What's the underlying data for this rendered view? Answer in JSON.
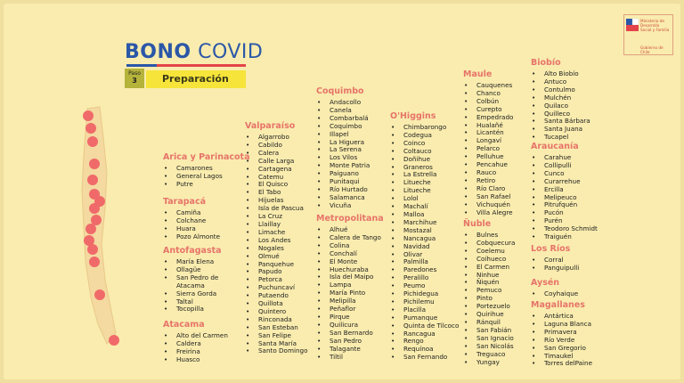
{
  "header": {
    "title_bold": "BONO",
    "title_rest": "COVID",
    "step_label": "Paso",
    "step_number": "3",
    "section": "Preparación"
  },
  "logo": {
    "line1": "Ministerio de Desarrollo Social y Familia",
    "line2": "Gobierno de Chile"
  },
  "regions": [
    {
      "name": "Arica y Parinacota",
      "communes": [
        "Camarones",
        "General Lagos",
        "Putre"
      ]
    },
    {
      "name": "Tarapacá",
      "communes": [
        "Camiña",
        "Colchane",
        "Huara",
        "Pozo Almonte"
      ]
    },
    {
      "name": "Antofagasta",
      "communes": [
        "María Elena",
        "Ollagüe",
        "San Pedro de Atacama",
        "Sierra Gorda",
        "Taltal",
        "Tocopilla"
      ]
    },
    {
      "name": "Atacama",
      "communes": [
        "Alto del Carmen",
        "Caldera",
        "Freirina",
        "Huasco"
      ]
    },
    {
      "name": "Valparaíso",
      "communes": [
        "Algarrobo",
        "Cabildo",
        "Calera",
        "Calle Larga",
        "Cartagena",
        "Catemu",
        "El Quisco",
        "El Tabo",
        "Hijuelas",
        "Isla de Pascua",
        "La Cruz",
        "Llaillay",
        "Limache",
        "Los Andes",
        "Nogales",
        "Olmué",
        "Panquehue",
        "Papudo",
        "Petorca",
        "Puchuncaví",
        "Putaendo",
        "Quillota",
        "Quintero",
        "Rinconada",
        "San Esteban",
        "San Felipe",
        "Santa María",
        "Santo Domingo"
      ]
    },
    {
      "name": "Coquimbo",
      "communes": [
        "Andacollo",
        "Canela",
        "Combarbalá",
        "Coquimbo",
        "Illapel",
        "La Higuera",
        "La Serena",
        "Los Vilos",
        "Monte Patria",
        "Paiguano",
        "Punitaqui",
        "Río Hurtado",
        "Salamanca",
        "Vicuña"
      ]
    },
    {
      "name": "Metropolitana",
      "communes": [
        "Alhué",
        "Calera de Tango",
        "Colina",
        "Conchalí",
        "El Monte",
        "Huechuraba",
        "Isla del Maipo",
        "Lampa",
        "María Pinto",
        "Melipilla",
        "Peñaflor",
        "Pirque",
        "Quilicura",
        "San Bernardo",
        "San Pedro",
        "Talagante",
        "Tiltil"
      ]
    },
    {
      "name": "O'Higgins",
      "communes": [
        "Chimbarongo",
        "Codegua",
        "Coinco",
        "Coltauco",
        "Doñihue",
        "Graneros",
        "La Estrella",
        "Litueche",
        "Litueche",
        "Lolol",
        "Machalí",
        "Malloa",
        "Marchihue",
        "Mostazal",
        "Nancagua",
        "Navidad",
        "Olivar",
        "Palmilla",
        "Paredones",
        "Peralillo",
        "Peumo",
        "Pichidegua",
        "Pichilemu",
        "Placilla",
        "Pumanque",
        "Quinta de Tilcoco",
        "Rancagua",
        "Rengo",
        "Requínoa",
        "San Fernando"
      ]
    },
    {
      "name": "Maule",
      "communes": [
        "Cauquenes",
        "Chanco",
        "Colbún",
        "Curepto",
        "Empedrado",
        "Hualañé",
        "Licantén",
        "Longaví",
        "Pelarco",
        "Pelluhue",
        "Pencahue",
        "Rauco",
        "Retiro",
        "Río Claro",
        "San Rafael",
        "Vichuquén",
        "Villa Alegre"
      ]
    },
    {
      "name": "Ñuble",
      "communes": [
        "Bulnes",
        "Cobquecura",
        "Coelemu",
        "Coihueco",
        "El Carmen",
        "Ninhue",
        "Ñiquén",
        "Pemuco",
        "Pinto",
        "Portezuelo",
        "Quirihue",
        "Ránquil",
        "San Fabián",
        "San Ignacio",
        "San Nicolás",
        "Treguaco",
        "Yungay"
      ]
    },
    {
      "name": "Biobío",
      "communes": [
        "Alto Biobío",
        "Antuco",
        "Contulmo",
        "Mulchén",
        "Quilaco",
        "Quilleco",
        "Santa Bárbara",
        "Santa Juana",
        "Tucapel"
      ]
    },
    {
      "name": "Araucanía",
      "communes": [
        "Carahue",
        "Collipulli",
        "Cunco",
        "Curarrehue",
        "Ercilla",
        "Melipeuco",
        "Pitrufquén",
        "Pucón",
        "Purén",
        "Teodoro Schmidt",
        "Traiguén"
      ]
    },
    {
      "name": "Los Ríos",
      "communes": [
        "Corral",
        "Panguipulli"
      ]
    },
    {
      "name": "Aysén",
      "communes": [
        "Coyhaique"
      ]
    },
    {
      "name": "Magallanes",
      "communes": [
        "Antártica",
        "Laguna Blanca",
        "Primavera",
        "Río Verde",
        "San Gregorio",
        "Timaukel",
        "Torres delPaine"
      ]
    }
  ]
}
